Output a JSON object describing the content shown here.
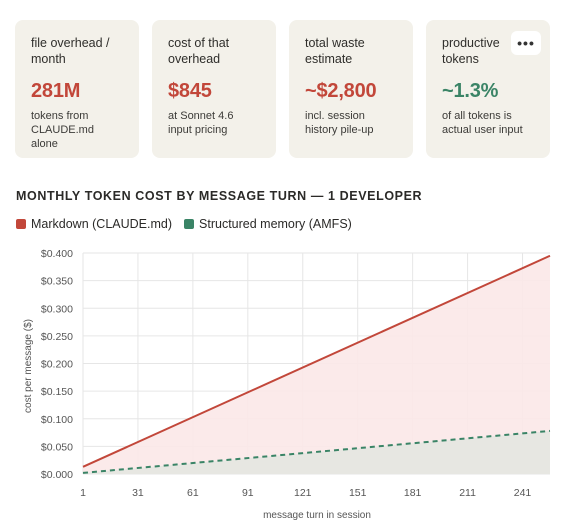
{
  "cards": [
    {
      "label": "file overhead /\nmonth",
      "value": "281M",
      "note": "tokens from\nCLAUDE.md\nalone",
      "tone": "red"
    },
    {
      "label": "cost of that\noverhead",
      "value": "$845",
      "note": "at Sonnet 4.6\ninput pricing",
      "tone": "red"
    },
    {
      "label": "total waste\nestimate",
      "value": "~$2,800",
      "note": "incl. session\nhistory pile-up",
      "tone": "red"
    },
    {
      "label": "productive\ntokens",
      "value": "~1.3%",
      "note": "of all tokens is\nactual user input",
      "tone": "green"
    }
  ],
  "more_button": {
    "label": "•••",
    "icon": "more-icon"
  },
  "colors": {
    "markdown": "#c2473a",
    "markdown_fill": "#fbe8e8",
    "amfs": "#3a8466",
    "amfs_fill": "#e7e7e2",
    "grid": "#e6e6e6",
    "card_bg": "#f3f1ea"
  },
  "chart_data": {
    "type": "area",
    "title": "MONTHLY TOKEN COST BY MESSAGE TURN — 1 DEVELOPER",
    "xlabel": "message turn in session",
    "ylabel": "cost per message ($)",
    "xlim": [
      1,
      256
    ],
    "ylim": [
      0,
      0.4
    ],
    "x_ticks": [
      1,
      31,
      61,
      91,
      121,
      151,
      181,
      211,
      241
    ],
    "y_ticks": [
      0,
      0.05,
      0.1,
      0.15,
      0.2,
      0.25,
      0.3,
      0.35,
      0.4
    ],
    "y_tick_labels": [
      "$0.000",
      "$0.050",
      "$0.100",
      "$0.150",
      "$0.200",
      "$0.250",
      "$0.300",
      "$0.350",
      "$0.400"
    ],
    "grid": true,
    "legend_position": "top-left",
    "series": [
      {
        "name": "Markdown (CLAUDE.md)",
        "x": [
          1,
          256
        ],
        "y": [
          0.013,
          0.395
        ],
        "style": "solid",
        "fill": true
      },
      {
        "name": "Structured memory (AMFS)",
        "x": [
          1,
          256
        ],
        "y": [
          0.002,
          0.078
        ],
        "style": "dashed",
        "fill": true
      }
    ]
  }
}
